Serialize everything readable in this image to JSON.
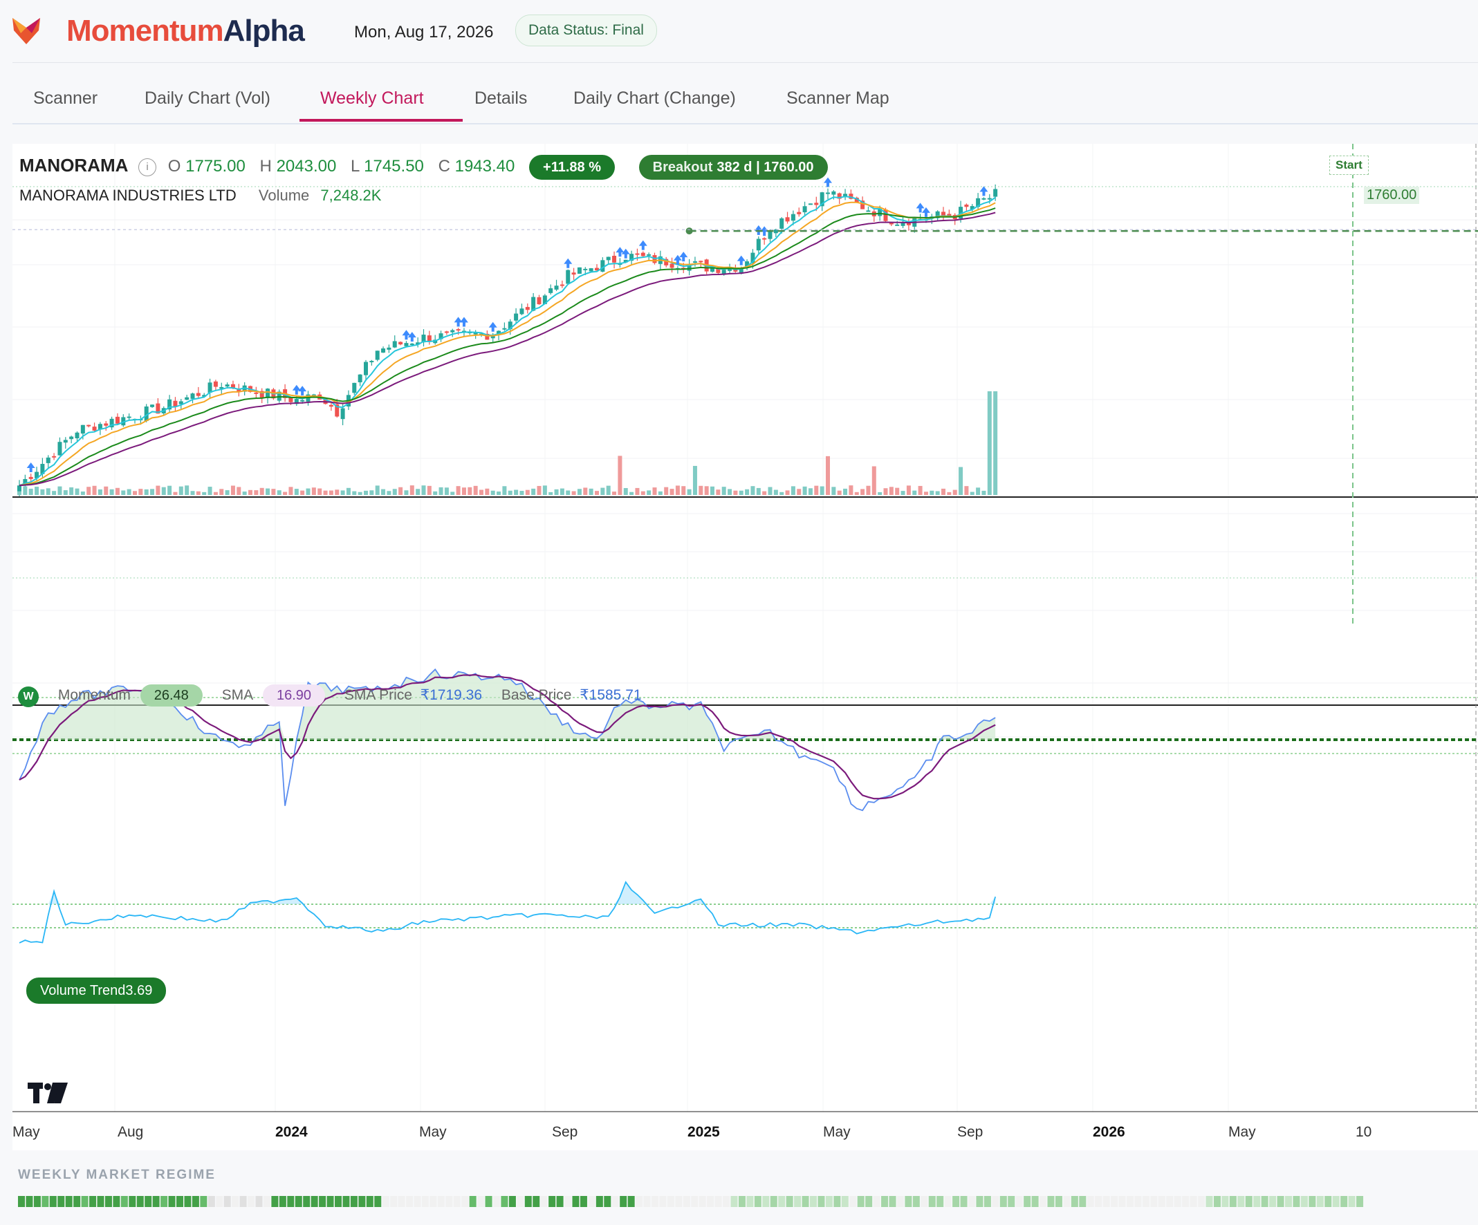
{
  "brand": {
    "name_part1": "Momentum",
    "name_part2": "Alpha"
  },
  "header": {
    "date": "Mon, Aug 17, 2026",
    "data_status": "Data Status: Final"
  },
  "tabs": [
    {
      "label": "Scanner",
      "active": false
    },
    {
      "label": "Daily Chart (Vol)",
      "active": false
    },
    {
      "label": "Weekly Chart",
      "active": true
    },
    {
      "label": "Details",
      "active": false
    },
    {
      "label": "Daily Chart (Change)",
      "active": false
    },
    {
      "label": "Scanner Map",
      "active": false
    }
  ],
  "symbol": {
    "ticker": "MANORAMA",
    "company": "MANORAMA INDUSTRIES LTD",
    "open_label": "O",
    "open": "1775.00",
    "high_label": "H",
    "high": "2043.00",
    "low_label": "L",
    "low": "1745.50",
    "close_label": "C",
    "close": "1943.40",
    "change": "+11.88 %",
    "breakout_label": "Breakout",
    "breakout_value": "382 d | 1760.00",
    "volume_label": "Volume",
    "volume": "7,248.2K",
    "breakout_price_tag": "1760.00",
    "start_tag": "Start"
  },
  "momentum_panel": {
    "badge": "W",
    "momentum_label": "Momentum",
    "momentum_value": "26.48",
    "sma_label": "SMA",
    "sma_value": "16.90",
    "sma_price_label": "SMA Price",
    "sma_price_value": "₹1719.36",
    "base_price_label": "Base Price",
    "base_price_value": "₹1585.71"
  },
  "volume_trend_panel": {
    "label": "Volume Trend",
    "value": "3.69"
  },
  "x_axis": {
    "labels": [
      "May",
      "Aug",
      "2024",
      "May",
      "Sep",
      "2025",
      "May",
      "Sep",
      "2026",
      "May",
      "10"
    ]
  },
  "regime": {
    "title": "WEEKLY MARKET REGIME"
  },
  "colors": {
    "up": "#26a69a",
    "down": "#ef5350",
    "ema_fast": "#26c6da",
    "ema_mid": "#f5a623",
    "ema_slow": "#1b8a1b",
    "ema_long": "#7b1a7b",
    "accent": "#c2185b"
  },
  "chart_data": {
    "type": "candlestick",
    "interval": "weekly",
    "price_range": [
      500,
      2050
    ],
    "breakout_level": 1760,
    "last_candle": {
      "open": 1775,
      "high": 2043,
      "low": 1745.5,
      "close": 1943.4
    },
    "x_labels": [
      "May",
      "Aug",
      "2024",
      "May",
      "Sep",
      "2025",
      "May",
      "Sep",
      "2026",
      "May",
      "10"
    ],
    "momentum": {
      "value": 26.48,
      "sma": 16.9
    },
    "volume_trend": 3.69
  }
}
